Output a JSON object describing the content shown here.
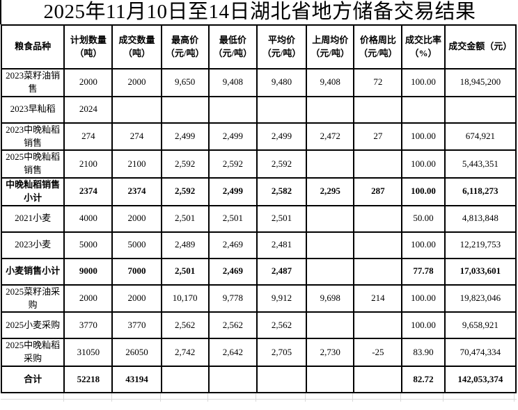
{
  "title": "2025年11月10日至14日湖北省地方储备交易结果",
  "table": {
    "headers": [
      {
        "line1": "粮食品种",
        "line2": ""
      },
      {
        "line1": "计划数量",
        "line2": "（吨）"
      },
      {
        "line1": "成交数量",
        "line2": "（吨）"
      },
      {
        "line1": "最高价",
        "line2": "（元/吨）"
      },
      {
        "line1": "最低价",
        "line2": "（元/吨）"
      },
      {
        "line1": "平均价",
        "line2": "（元/吨）"
      },
      {
        "line1": "上周均价",
        "line2": "（元/吨）"
      },
      {
        "line1": "价格周比",
        "line2": "（元/吨）"
      },
      {
        "line1": "成交比率",
        "line2": "（%）"
      },
      {
        "line1": "成交金额（元）",
        "line2": ""
      }
    ],
    "rows": [
      {
        "name": "2023菜籽油销售",
        "bold": false,
        "values": [
          "2000",
          "2000",
          "9,650",
          "9,408",
          "9,480",
          "9,408",
          "72",
          "100.00",
          "18,945,200"
        ]
      },
      {
        "name": "2023早籼稻",
        "bold": false,
        "values": [
          "2024",
          "",
          "",
          "",
          "",
          "",
          "",
          "",
          ""
        ]
      },
      {
        "name": "2023中晚籼稻销售",
        "bold": false,
        "values": [
          "274",
          "274",
          "2,499",
          "2,499",
          "2,499",
          "2,472",
          "27",
          "100.00",
          "674,921"
        ]
      },
      {
        "name": "2025中晚籼稻销售",
        "bold": false,
        "values": [
          "2100",
          "2100",
          "2,592",
          "2,592",
          "2,592",
          "",
          "",
          "100.00",
          "5,443,351"
        ]
      },
      {
        "name": "中晚籼稻销售小计",
        "bold": true,
        "values": [
          "2374",
          "2374",
          "2,592",
          "2,499",
          "2,582",
          "2,295",
          "287",
          "100.00",
          "6,118,273"
        ]
      },
      {
        "name": "2021小麦",
        "bold": false,
        "values": [
          "4000",
          "2000",
          "2,501",
          "2,501",
          "2,501",
          "",
          "",
          "50.00",
          "4,813,848"
        ]
      },
      {
        "name": "2023小麦",
        "bold": false,
        "values": [
          "5000",
          "5000",
          "2,489",
          "2,469",
          "2,481",
          "",
          "",
          "100.00",
          "12,219,753"
        ]
      },
      {
        "name": "小麦销售小计",
        "bold": true,
        "values": [
          "9000",
          "7000",
          "2,501",
          "2,469",
          "2,487",
          "",
          "",
          "77.78",
          "17,033,601"
        ]
      },
      {
        "name": "2025菜籽油采购",
        "bold": false,
        "values": [
          "2000",
          "2000",
          "10,170",
          "9,778",
          "9,912",
          "9,698",
          "214",
          "100.00",
          "19,823,046"
        ]
      },
      {
        "name": "2025小麦采购",
        "bold": false,
        "values": [
          "3770",
          "3770",
          "2,562",
          "2,562",
          "2,562",
          "",
          "",
          "100.00",
          "9,658,921"
        ]
      },
      {
        "name": "2025中晚籼稻采购",
        "bold": false,
        "values": [
          "31050",
          "26050",
          "2,742",
          "2,642",
          "2,705",
          "2,730",
          "-25",
          "83.90",
          "70,474,334"
        ]
      },
      {
        "name": "合计",
        "bold": true,
        "values": [
          "52218",
          "43194",
          "",
          "",
          "",
          "",
          "",
          "82.72",
          "142,053,374"
        ]
      }
    ]
  },
  "colors": {
    "border": "#000000",
    "background": "#ffffff",
    "gridline": "#d9d9d9",
    "text": "#000000"
  }
}
